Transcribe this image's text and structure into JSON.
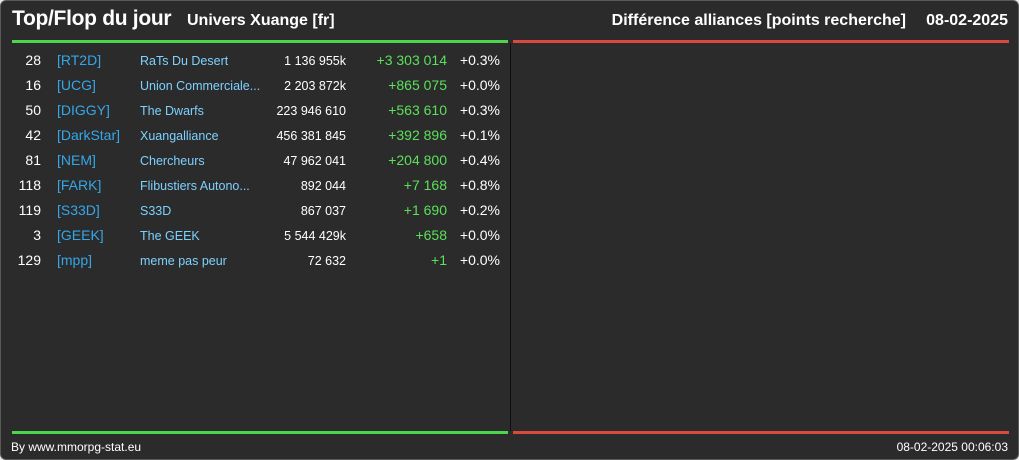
{
  "header": {
    "title": "Top/Flop du jour",
    "universe": "Univers Xuange [fr]",
    "metric": "Différence alliances [points recherche]",
    "date": "08-02-2025"
  },
  "colors": {
    "top_bar": "#4cd64c",
    "flop_bar": "#d9493e",
    "tag": "#35a7e8",
    "name": "#7dd1ff",
    "positive_diff": "#5ae05a",
    "background": "#2b2b2b"
  },
  "top": [
    {
      "rank": "28",
      "tag": "[RT2D]",
      "name": "RaTs Du Desert",
      "points": "1 136 955k",
      "diff": "+3 303 014",
      "pct": "+0.3%"
    },
    {
      "rank": "16",
      "tag": "[UCG]",
      "name": "Union Commerciale...",
      "points": "2 203 872k",
      "diff": "+865 075",
      "pct": "+0.0%"
    },
    {
      "rank": "50",
      "tag": "[DIGGY]",
      "name": "The Dwarfs",
      "points": "223 946 610",
      "diff": "+563 610",
      "pct": "+0.3%"
    },
    {
      "rank": "42",
      "tag": "[DarkStar]",
      "name": "Xuangalliance",
      "points": "456 381 845",
      "diff": "+392 896",
      "pct": "+0.1%"
    },
    {
      "rank": "81",
      "tag": "[NEM]",
      "name": "Chercheurs",
      "points": "47 962 041",
      "diff": "+204 800",
      "pct": "+0.4%"
    },
    {
      "rank": "118",
      "tag": "[FARK]",
      "name": "Flibustiers Autono...",
      "points": "892 044",
      "diff": "+7 168",
      "pct": "+0.8%"
    },
    {
      "rank": "119",
      "tag": "[S33D]",
      "name": "S33D",
      "points": "867 037",
      "diff": "+1 690",
      "pct": "+0.2%"
    },
    {
      "rank": "3",
      "tag": "[GEEK]",
      "name": "The GEEK",
      "points": "5 544 429k",
      "diff": "+658",
      "pct": "+0.0%"
    },
    {
      "rank": "129",
      "tag": "[mpp]",
      "name": "meme pas peur",
      "points": "72 632",
      "diff": "+1",
      "pct": "+0.0%"
    }
  ],
  "flop": [],
  "footer": {
    "source": "By www.mmorpg-stat.eu",
    "generated": "08-02-2025 00:06:03"
  }
}
